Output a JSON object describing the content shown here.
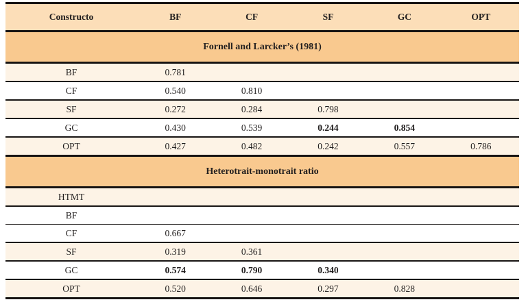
{
  "colors": {
    "header_row_bg": "#fcdeb8",
    "section_header_bg": "#f9c98f",
    "stripe_row_bg": "#fdf3e6",
    "plain_row_bg": "#ffffff",
    "border": "#171413",
    "text": "#221f1f"
  },
  "table": {
    "columns": [
      "Constructo",
      "BF",
      "CF",
      "SF",
      "GC",
      "OPT"
    ],
    "sections": [
      {
        "title": "Fornell and Larcker’s (1981)",
        "rows": [
          {
            "label": "BF",
            "shade": "stripe",
            "values": [
              "0.781",
              "",
              "",
              "",
              ""
            ],
            "bold_cols": []
          },
          {
            "label": "CF",
            "shade": "plain",
            "values": [
              "0.540",
              "0.810",
              "",
              "",
              ""
            ],
            "bold_cols": []
          },
          {
            "label": "SF",
            "shade": "stripe",
            "values": [
              "0.272",
              "0.284",
              "0.798",
              "",
              ""
            ],
            "bold_cols": []
          },
          {
            "label": "GC",
            "shade": "plain",
            "values": [
              "0.430",
              "0.539",
              "0.244",
              "0.854",
              ""
            ],
            "bold_cols": [
              2,
              3
            ]
          },
          {
            "label": "OPT",
            "shade": "stripe",
            "values": [
              "0.427",
              "0.482",
              "0.242",
              "0.557",
              "0.786"
            ],
            "bold_cols": []
          }
        ]
      },
      {
        "title": "Heterotrait-monotrait ratio",
        "rows": [
          {
            "label": "HTMT",
            "shade": "stripe",
            "values": [
              "",
              "",
              "",
              "",
              ""
            ],
            "bold_cols": []
          },
          {
            "label": "BF",
            "shade": "plain",
            "values": [
              "",
              "",
              "",
              "",
              ""
            ],
            "bold_cols": [],
            "thin_border": true
          },
          {
            "label": "CF",
            "shade": "plain",
            "values": [
              "0.667",
              "",
              "",
              "",
              ""
            ],
            "bold_cols": []
          },
          {
            "label": "SF",
            "shade": "stripe",
            "values": [
              "0.319",
              "0.361",
              "",
              "",
              ""
            ],
            "bold_cols": []
          },
          {
            "label": "GC",
            "shade": "plain",
            "values": [
              "0.574",
              "0.790",
              "0.340",
              "",
              ""
            ],
            "bold_cols": [
              0,
              1,
              2
            ]
          },
          {
            "label": "OPT",
            "shade": "stripe",
            "values": [
              "0.520",
              "0.646",
              "0.297",
              "0.828",
              ""
            ],
            "bold_cols": []
          }
        ]
      }
    ]
  }
}
